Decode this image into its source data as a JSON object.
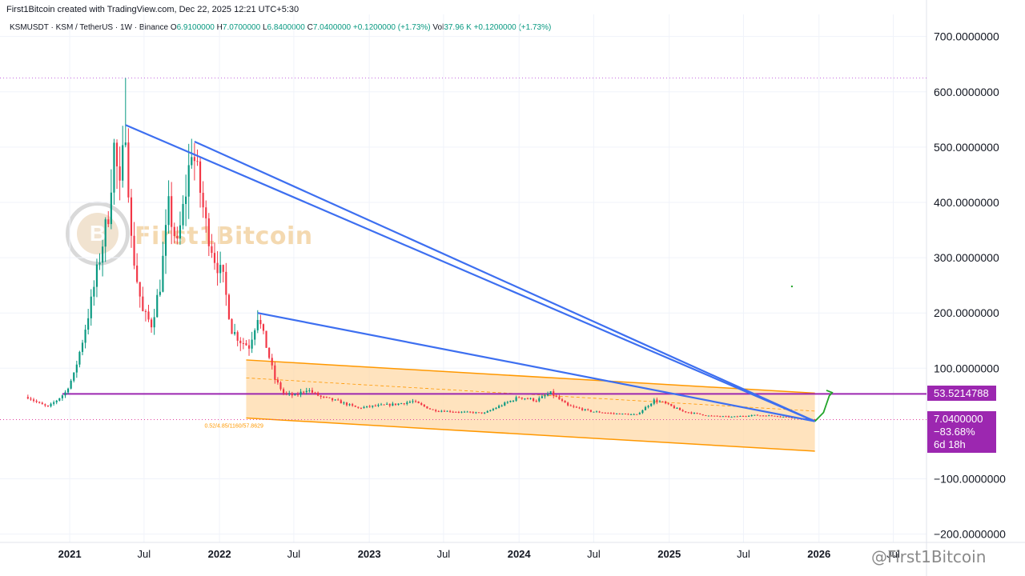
{
  "header": {
    "attribution": "First1Bitcoin created with TradingView.com, Dec 22, 2025 12:21 UTC+5:30"
  },
  "legend": {
    "symbol": "KSMUSDT · KSM / TetherUS · 1W · Binance",
    "o_label": "O",
    "o_value": "6.9100000",
    "h_label": "H",
    "h_value": "7.0700000",
    "l_label": "L",
    "l_value": "6.8400000",
    "c_label": "C",
    "c_value": "7.0400000",
    "change": "+0.1200000 (+1.73%)",
    "vol_label": "Vol",
    "vol_value": "37.96 K",
    "vol_change": "+0.1200000 (+1.73%)"
  },
  "badges": {
    "level": "53.5214788",
    "price": "7.0400000",
    "change_pct": "−83.68%",
    "countdown": "6d 18h"
  },
  "channel_label": "0.52/4.85/1160/57.8629",
  "logo": {
    "text": "First1Bitcoin",
    "mark": "B"
  },
  "watermark": "@First1Bitcoin",
  "colors": {
    "up": "#089981",
    "down": "#f23645",
    "trendline": "#3d6ff0",
    "level": "#9c27b0",
    "channel_fill": "#ffd9a8",
    "channel_stroke": "#ff9800",
    "projection": "#22a52a"
  },
  "chart_data": {
    "type": "candlestick",
    "title": "",
    "symbol": "KSMUSDT",
    "interval": "1W",
    "y_axis": {
      "ticks": [
        {
          "value": 700,
          "label": "700.0000000"
        },
        {
          "value": 600,
          "label": "600.0000000"
        },
        {
          "value": 500,
          "label": "500.0000000"
        },
        {
          "value": 400,
          "label": "400.0000000"
        },
        {
          "value": 300,
          "label": "300.0000000"
        },
        {
          "value": 200,
          "label": "200.0000000"
        },
        {
          "value": 100,
          "label": "100.0000000"
        },
        {
          "value": -100,
          "label": "−100.0000000"
        },
        {
          "value": -200,
          "label": "−200.0000000"
        }
      ],
      "range": [
        -215,
        740
      ],
      "position": "right"
    },
    "x_axis": {
      "range": [
        "2020-07-15",
        "2026-09-20"
      ],
      "ticks": [
        {
          "date": "2021-01-01",
          "label": "2021",
          "major": true
        },
        {
          "date": "2021-07-01",
          "label": "Jul",
          "major": false
        },
        {
          "date": "2022-01-01",
          "label": "2022",
          "major": true
        },
        {
          "date": "2022-07-01",
          "label": "Jul",
          "major": false
        },
        {
          "date": "2023-01-01",
          "label": "2023",
          "major": true
        },
        {
          "date": "2023-07-01",
          "label": "Jul",
          "major": false
        },
        {
          "date": "2024-01-01",
          "label": "2024",
          "major": true
        },
        {
          "date": "2024-07-01",
          "label": "Jul",
          "major": false
        },
        {
          "date": "2025-01-01",
          "label": "2025",
          "major": true
        },
        {
          "date": "2025-07-01",
          "label": "Jul",
          "major": false
        },
        {
          "date": "2026-01-01",
          "label": "2026",
          "major": true
        },
        {
          "date": "2026-07-01",
          "label": "Jul",
          "major": false
        }
      ]
    },
    "price_path": [
      [
        "2020-09-21",
        48
      ],
      [
        "2020-10-19",
        36
      ],
      [
        "2020-11-09",
        30
      ],
      [
        "2020-11-30",
        42
      ],
      [
        "2020-12-21",
        56
      ],
      [
        "2021-01-11",
        88
      ],
      [
        "2021-02-01",
        150
      ],
      [
        "2021-02-22",
        220
      ],
      [
        "2021-03-15",
        300
      ],
      [
        "2021-04-05",
        380
      ],
      [
        "2021-04-19",
        500
      ],
      [
        "2021-05-03",
        420
      ],
      [
        "2021-05-17",
        540
      ],
      [
        "2021-05-31",
        330
      ],
      [
        "2021-06-14",
        260
      ],
      [
        "2021-06-28",
        200
      ],
      [
        "2021-07-19",
        180
      ],
      [
        "2021-08-09",
        250
      ],
      [
        "2021-08-30",
        390
      ],
      [
        "2021-09-20",
        320
      ],
      [
        "2021-10-11",
        420
      ],
      [
        "2021-10-25",
        500
      ],
      [
        "2021-11-08",
        450
      ],
      [
        "2021-11-29",
        360
      ],
      [
        "2021-12-20",
        300
      ],
      [
        "2022-01-10",
        260
      ],
      [
        "2022-01-31",
        170
      ],
      [
        "2022-02-21",
        150
      ],
      [
        "2022-03-14",
        140
      ],
      [
        "2022-04-04",
        195
      ],
      [
        "2022-04-25",
        140
      ],
      [
        "2022-05-16",
        80
      ],
      [
        "2022-06-06",
        55
      ],
      [
        "2022-07-04",
        50
      ],
      [
        "2022-08-01",
        62
      ],
      [
        "2022-09-05",
        48
      ],
      [
        "2022-10-17",
        40
      ],
      [
        "2022-12-05",
        28
      ],
      [
        "2023-01-16",
        32
      ],
      [
        "2023-03-06",
        35
      ],
      [
        "2023-04-17",
        40
      ],
      [
        "2023-06-05",
        24
      ],
      [
        "2023-08-07",
        21
      ],
      [
        "2023-10-09",
        19
      ],
      [
        "2023-11-27",
        36
      ],
      [
        "2024-01-01",
        48
      ],
      [
        "2024-02-12",
        42
      ],
      [
        "2024-03-18",
        55
      ],
      [
        "2024-04-29",
        32
      ],
      [
        "2024-06-24",
        22
      ],
      [
        "2024-08-19",
        18
      ],
      [
        "2024-10-14",
        16
      ],
      [
        "2024-11-25",
        42
      ],
      [
        "2024-12-16",
        38
      ],
      [
        "2025-02-03",
        22
      ],
      [
        "2025-04-07",
        14
      ],
      [
        "2025-06-02",
        12
      ],
      [
        "2025-07-21",
        15
      ],
      [
        "2025-09-15",
        14
      ],
      [
        "2025-11-03",
        10
      ],
      [
        "2025-12-22",
        7.04
      ]
    ],
    "peaks": [
      {
        "date": "2021-05-17",
        "high": 625
      },
      {
        "date": "2021-10-25",
        "high": 515
      },
      {
        "date": "2022-04-04",
        "high": 205
      }
    ],
    "trendlines": [
      {
        "from": [
          "2021-05-17",
          540
        ],
        "to": [
          "2025-12-22",
          4
        ]
      },
      {
        "from": [
          "2021-11-01",
          510
        ],
        "to": [
          "2025-12-22",
          4
        ]
      },
      {
        "from": [
          "2022-04-04",
          200
        ],
        "to": [
          "2025-12-22",
          4
        ]
      }
    ],
    "channel": {
      "upper": [
        [
          "2022-03-07",
          115
        ],
        [
          "2025-12-22",
          55
        ]
      ],
      "lower": [
        [
          "2022-03-07",
          10
        ],
        [
          "2025-12-22",
          -50
        ]
      ]
    },
    "horizontal_levels": [
      {
        "value": 53.52,
        "style": "solid"
      },
      {
        "value": 625,
        "style": "dotted"
      },
      {
        "value": 7.04,
        "style": "dotted"
      }
    ],
    "projection_path": [
      [
        "2025-12-22",
        4
      ],
      [
        "2026-01-12",
        20
      ],
      [
        "2026-01-26",
        50
      ],
      [
        "2026-02-02",
        56
      ],
      [
        "2026-01-19",
        60
      ]
    ],
    "last_price": 7.04,
    "grid": true
  }
}
